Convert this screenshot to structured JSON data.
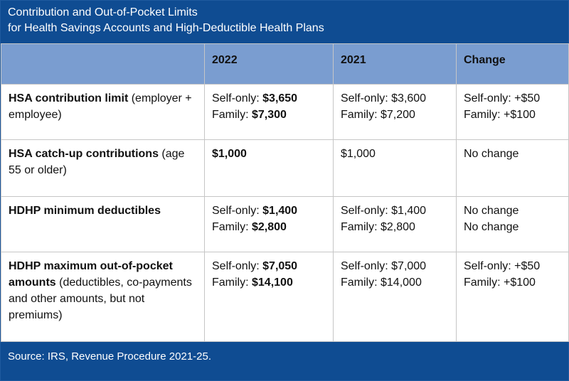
{
  "title": {
    "line1": "Contribution and Out-of-Pocket Limits",
    "line2": "for Health Savings Accounts and High-Deductible Health Plans"
  },
  "columns": [
    "",
    "2022",
    "2021",
    "Change"
  ],
  "rows": [
    {
      "label_bold": "HSA contribution limit",
      "label_rest": " (employer + employee)",
      "y2022": [
        {
          "prefix": "Self-only: ",
          "value": "$3,650"
        },
        {
          "prefix": "Family: ",
          "value": "$7,300"
        }
      ],
      "y2021": [
        "Self-only: $3,600",
        "Family: $7,200"
      ],
      "change": [
        "Self-only: +$50",
        "Family: +$100"
      ]
    },
    {
      "label_bold": "HSA catch-up contributions",
      "label_rest": " (age 55 or older)",
      "y2022": [
        {
          "prefix": "",
          "value": "$1,000"
        }
      ],
      "y2021": [
        "$1,000"
      ],
      "change": [
        "No change"
      ]
    },
    {
      "label_bold": "HDHP minimum deductibles",
      "label_rest": "",
      "y2022": [
        {
          "prefix": "Self-only: ",
          "value": "$1,400"
        },
        {
          "prefix": "Family: ",
          "value": "$2,800"
        }
      ],
      "y2021": [
        "Self-only: $1,400",
        "Family: $2,800"
      ],
      "change": [
        "No change",
        "No change"
      ]
    },
    {
      "label_bold": "HDHP maximum out-of-pocket amounts",
      "label_rest": " (deductibles, co-payments and other amounts, but not premiums)",
      "y2022": [
        {
          "prefix": "Self-only: ",
          "value": "$7,050"
        },
        {
          "prefix": "Family: ",
          "value": "$14,100"
        }
      ],
      "y2021": [
        "Self-only: $7,000",
        "Family: $14,000"
      ],
      "change": [
        "Self-only: +$50",
        "Family: +$100"
      ]
    }
  ],
  "footer": "Source: IRS, Revenue Procedure 2021-25.",
  "colors": {
    "header_band": "#0f4c92",
    "column_header": "#7a9dd0",
    "grid": "#c6c6c6"
  }
}
